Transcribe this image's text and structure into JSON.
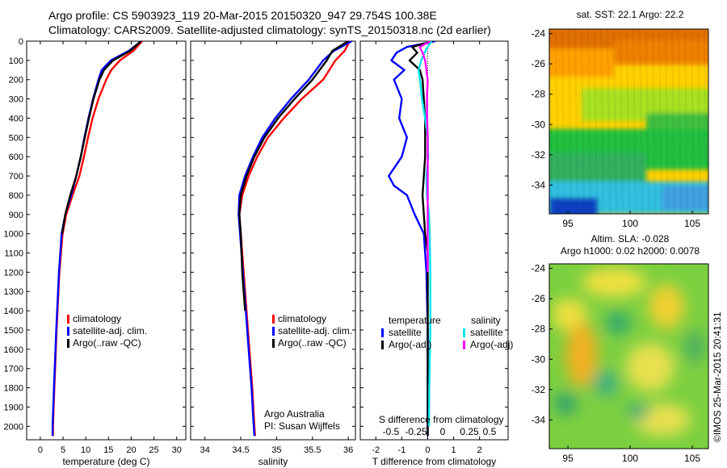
{
  "header": {
    "line1": "Argo profile: CS 5903923_119 20-Mar-2015 20150320_947 29.754S 100.38E",
    "line2": "Climatology: CARS2009. Satellite-adjusted climatology: synTS_20150318.nc (2d earlier)"
  },
  "credit": "©IMOS 25-Mar-2015 20:41:31",
  "colors": {
    "climatology": "#ff0000",
    "satellite": "#0000ff",
    "argo": "#000000",
    "cyan": "#00e5ee",
    "magenta": "#ff00ff"
  },
  "chart_data": [
    {
      "type": "line",
      "xlabel": "temperature (deg C)",
      "xlim": [
        -3,
        32
      ],
      "xticks": [
        "0",
        "5",
        "10",
        "15",
        "20",
        "25",
        "30"
      ],
      "ylim": [
        2070,
        0
      ],
      "yticks": [
        "0",
        "100",
        "200",
        "300",
        "400",
        "500",
        "600",
        "700",
        "800",
        "900",
        "1000",
        "1100",
        "1200",
        "1300",
        "1400",
        "1500",
        "1600",
        "1700",
        "1800",
        "1900",
        "2000"
      ],
      "legend": {
        "climatology": "climatology",
        "satellite": "satellite-adj. clim.",
        "argo": "Argo(..raw -QC)"
      },
      "series": [
        {
          "key": "climatology",
          "depth": [
            0,
            50,
            100,
            150,
            200,
            300,
            400,
            500,
            600,
            700,
            800,
            900,
            1000,
            1200,
            1500,
            1800,
            2000,
            2050
          ],
          "values": [
            22.4,
            20.5,
            17.5,
            15.6,
            14.5,
            12.8,
            11.5,
            10.5,
            9.6,
            8.6,
            7.1,
            5.7,
            4.9,
            4.2,
            3.6,
            3.1,
            2.8,
            2.8
          ]
        },
        {
          "key": "satellite",
          "depth": [
            0,
            50,
            100,
            150,
            200,
            300,
            400,
            500,
            600,
            700,
            800,
            900,
            1000,
            1200,
            1500,
            1800,
            2000,
            2050
          ],
          "values": [
            22.2,
            19.5,
            15.5,
            13.5,
            12.8,
            11.6,
            10.6,
            9.7,
            8.9,
            7.9,
            6.8,
            5.5,
            4.7,
            4.1,
            3.5,
            3.0,
            2.7,
            2.7
          ]
        },
        {
          "key": "argo",
          "depth": [
            0,
            50,
            100,
            150,
            200,
            300,
            400,
            500,
            600,
            700,
            800,
            900,
            1000
          ],
          "values": [
            22.1,
            19.8,
            16.0,
            14.0,
            13.0,
            11.7,
            10.7,
            9.8,
            8.9,
            7.9,
            6.6,
            5.5,
            4.8
          ]
        }
      ]
    },
    {
      "type": "line",
      "xlabel": "salinity",
      "xlim": [
        33.8,
        36.1
      ],
      "xticks": [
        "34",
        "34.5",
        "35",
        "35.5",
        "36"
      ],
      "ylim": [
        2070,
        0
      ],
      "legend": {
        "climatology": "climatology",
        "satellite": "satellite-adj. clim.",
        "argo": "Argo(..raw -QC)"
      },
      "notes": [
        "Argo Australia",
        "PI: Susan Wijffels"
      ],
      "series": [
        {
          "key": "climatology",
          "depth": [
            0,
            50,
            100,
            200,
            300,
            400,
            500,
            600,
            700,
            800,
            900,
            1000,
            1200,
            1400,
            1600,
            1800,
            2000,
            2050
          ],
          "values": [
            36.02,
            35.95,
            35.82,
            35.65,
            35.35,
            35.1,
            34.88,
            34.73,
            34.61,
            34.52,
            34.48,
            34.5,
            34.54,
            34.58,
            34.62,
            34.66,
            34.69,
            34.7
          ]
        },
        {
          "key": "satellite",
          "depth": [
            0,
            50,
            100,
            200,
            300,
            400,
            500,
            600,
            700,
            800,
            900,
            1000,
            1200,
            1400,
            1600,
            1800,
            2000,
            2050
          ],
          "values": [
            36.05,
            35.8,
            35.65,
            35.45,
            35.2,
            34.98,
            34.8,
            34.67,
            34.56,
            34.48,
            34.47,
            34.49,
            34.53,
            34.57,
            34.61,
            34.65,
            34.68,
            34.69
          ]
        },
        {
          "key": "argo",
          "depth": [
            0,
            50,
            100,
            200,
            300,
            400,
            500,
            600,
            700,
            800,
            900,
            1000,
            1200,
            1400
          ],
          "values": [
            36.0,
            35.78,
            35.7,
            35.5,
            35.25,
            35.02,
            34.83,
            34.69,
            34.58,
            34.5,
            34.48,
            34.5,
            34.52,
            34.56
          ]
        }
      ]
    },
    {
      "type": "line",
      "xlabel": "T difference from climatology",
      "xlabel2": "S difference from climatology",
      "xlim": [
        -2.6,
        3.1
      ],
      "xticks": [
        "-2",
        "-1",
        "0",
        "1",
        "2"
      ],
      "xticks2": [
        "-0.5",
        "-0.25",
        "0",
        "0.25",
        "0.5"
      ],
      "ylim": [
        2070,
        0
      ],
      "legend": {
        "heading_t": "temperature",
        "heading_s": "salinity",
        "t_sat": "satellite",
        "t_argo": "Argo(-adj)",
        "s_sat": "satellite",
        "s_argo": "Argo(-adj)"
      },
      "series": [
        {
          "key": "satellite",
          "depth": [
            0,
            30,
            60,
            100,
            150,
            200,
            300,
            400,
            500,
            600,
            700,
            750,
            800,
            900,
            1000,
            1200,
            1500,
            1800,
            2050
          ],
          "values": [
            0.3,
            -0.8,
            -1.2,
            -1.4,
            -0.9,
            -1.3,
            -1.0,
            -1.1,
            -0.8,
            -1.0,
            -1.5,
            -1.3,
            -0.8,
            -0.5,
            -0.15,
            -0.05,
            0,
            0,
            0
          ]
        },
        {
          "key": "argo",
          "depth": [
            0,
            30,
            60,
            100,
            150,
            200,
            300,
            400,
            500,
            600,
            700,
            800,
            900,
            1000,
            1100,
            1200,
            1500,
            1800,
            2050
          ],
          "values": [
            0.2,
            -0.6,
            -0.4,
            -0.7,
            -0.3,
            -0.2,
            -0.15,
            -0.1,
            -0.1,
            -0.1,
            -0.15,
            -0.2,
            -0.15,
            -0.1,
            0,
            0,
            0,
            0,
            0
          ]
        },
        {
          "key": "cyan",
          "depth": [
            0,
            40,
            100,
            150,
            200,
            300,
            400,
            500,
            600,
            700,
            800,
            900,
            1000,
            1200,
            1500,
            1800,
            2000
          ],
          "values": [
            0.15,
            -0.05,
            -0.25,
            -0.35,
            -0.3,
            -0.22,
            -0.1,
            0.0,
            0.02,
            -0.05,
            -0.03,
            0.05,
            0.08,
            0.1,
            0.1,
            0.06,
            0.05
          ]
        },
        {
          "key": "magenta",
          "depth": [
            0,
            30,
            60,
            100,
            200,
            300,
            400,
            500,
            600,
            700,
            800,
            900,
            1000,
            1200
          ],
          "values": [
            0.1,
            -0.3,
            -0.2,
            -0.1,
            0,
            -0.03,
            -0.02,
            0,
            0,
            0,
            0,
            0,
            0,
            0
          ]
        }
      ]
    },
    {
      "type": "heatmap",
      "title": "sat. SST: 22.1  Argo: 22.2",
      "xticks": [
        "95",
        "100",
        "105"
      ],
      "yticks": [
        "-24",
        "-26",
        "-28",
        "-30",
        "-32",
        "-34"
      ],
      "xlim": [
        93.5,
        106.3
      ],
      "ylim": [
        -35.9,
        -23.7
      ]
    },
    {
      "type": "heatmap",
      "title": "Altim. SLA: -0.028",
      "subtitle": "Argo h1000: 0.02 h2000: 0.0078",
      "xticks": [
        "95",
        "100",
        "105"
      ],
      "yticks": [
        "-24",
        "-26",
        "-28",
        "-30",
        "-32",
        "-34"
      ],
      "xlim": [
        93.5,
        106.3
      ],
      "ylim": [
        -35.9,
        -23.7
      ]
    }
  ]
}
